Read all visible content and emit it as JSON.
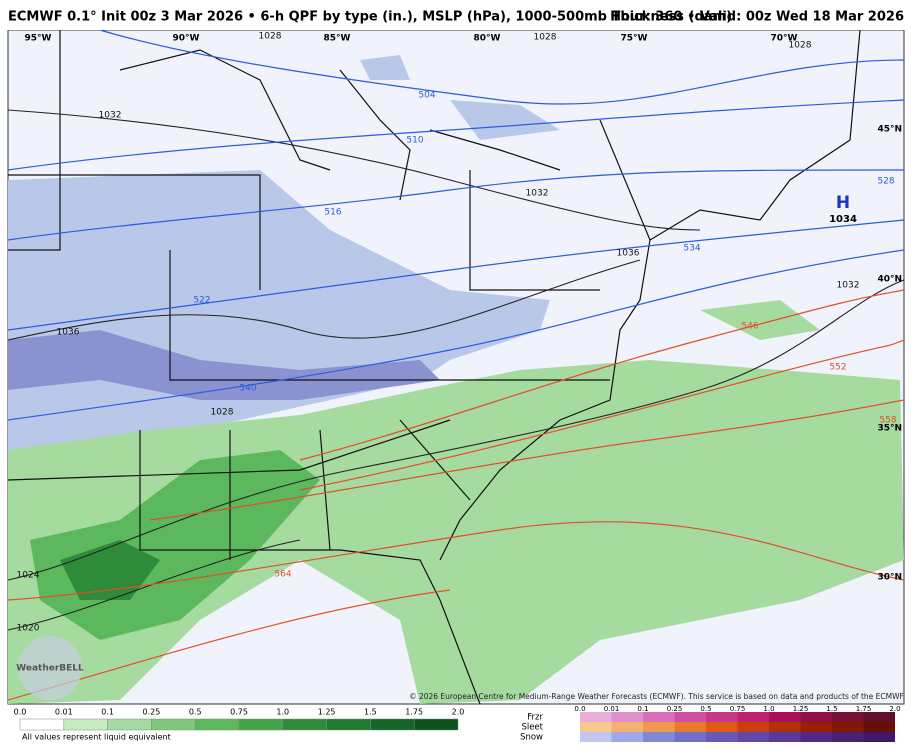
{
  "header": {
    "title": "ECMWF 0.1° Init 00z 3 Mar 2026 • 6-h QPF by type (in.), MSLP (hPa), 1000-500mb Thickness (dam)",
    "valid": "Hour: 360 • Valid: 00z Wed 18 Mar 2026"
  },
  "map": {
    "longitude_labels": [
      "95°W",
      "90°W",
      "85°W",
      "80°W",
      "75°W",
      "70°W"
    ],
    "latitude_labels": [
      "45°N",
      "40°N",
      "35°N",
      "30°N"
    ],
    "pressure_labels": [
      "1028",
      "1028",
      "1028",
      "1032",
      "1032",
      "1036",
      "1036",
      "1032",
      "1028",
      "1024",
      "1020"
    ],
    "thickness_labels": [
      "504",
      "510",
      "516",
      "522",
      "528",
      "534",
      "540",
      "546",
      "552",
      "558",
      "564"
    ],
    "high": {
      "symbol": "H",
      "pressure": "1034"
    },
    "credit": "© 2026 European Centre for Medium-Range Weather Forecasts (ECMWF). This service is based on data and products of the ECMWF.",
    "logo": "WeatherBELL"
  },
  "legend": {
    "rain_scale": [
      "0.0",
      "0.01",
      "0.1",
      "0.25",
      "0.5",
      "0.75",
      "1.0",
      "1.25",
      "1.5",
      "1.75",
      "2.0"
    ],
    "note": "All values represent liquid equivalent",
    "types": [
      "Frzr",
      "Sleet",
      "Snow"
    ],
    "type_scale": [
      "0.0",
      "0.01",
      "0.1",
      "0.25",
      "0.5",
      "0.75",
      "1.0",
      "1.25",
      "1.5",
      "1.75",
      "2.0"
    ]
  }
}
